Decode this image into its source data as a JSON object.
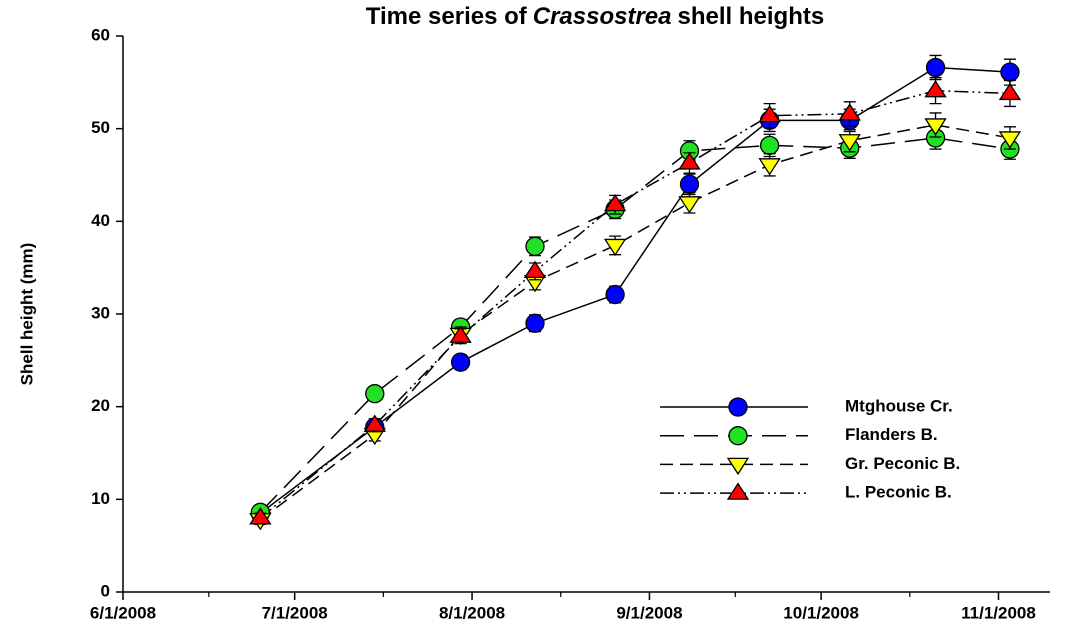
{
  "chart_data": {
    "type": "line",
    "title": [
      "Time series of",
      "Crassostrea",
      "shell heights"
    ],
    "ylabel": "Shell height (mm)",
    "x": [
      "6/25/2008",
      "7/15/2008",
      "7/30/2008",
      "8/12/2008",
      "8/26/2008",
      "9/8/2008",
      "9/22/2008",
      "10/6/2008",
      "10/21/2008",
      "11/3/2008"
    ],
    "xlim": [
      "6/1/2008",
      "11/10/2008"
    ],
    "xticks": [
      "6/1/2008",
      "7/1/2008",
      "8/1/2008",
      "9/1/2008",
      "10/1/2008",
      "11/1/2008"
    ],
    "ylim": [
      0,
      60
    ],
    "yticks": [
      0,
      10,
      20,
      30,
      40,
      50,
      60
    ],
    "series": [
      {
        "name": "Mtghouse Cr.",
        "color": "#0000ff",
        "marker": "circle",
        "dash": "solid",
        "values": [
          8.5,
          17.8,
          24.8,
          29.0,
          32.1,
          44.0,
          50.9,
          50.9,
          56.6,
          56.1
        ],
        "errors": [
          0.6,
          0.8,
          0.8,
          0.9,
          0.9,
          1.1,
          1.2,
          1.2,
          1.3,
          1.4
        ]
      },
      {
        "name": "Flanders B.",
        "color": "#22e022",
        "marker": "circle",
        "dash": "long-dash",
        "values": [
          8.6,
          21.4,
          28.6,
          37.3,
          41.3,
          47.6,
          48.2,
          47.9,
          49.0,
          47.8
        ],
        "errors": [
          0.5,
          0.7,
          0.8,
          1.0,
          1.0,
          1.1,
          1.2,
          1.1,
          1.2,
          1.1
        ]
      },
      {
        "name": "Gr. Peconic B.",
        "color": "#ffff00",
        "marker": "triangle-down",
        "dash": "dash",
        "values": [
          7.8,
          17.0,
          27.8,
          33.5,
          37.4,
          42.0,
          46.1,
          48.7,
          50.4,
          49.0
        ],
        "errors": [
          0.5,
          0.7,
          0.8,
          0.9,
          1.0,
          1.1,
          1.2,
          1.2,
          1.3,
          1.2
        ]
      },
      {
        "name": "L. Peconic B.",
        "color": "#ff0000",
        "marker": "triangle-up",
        "dash": "dash-dot-dot",
        "values": [
          8.0,
          18.0,
          27.6,
          34.6,
          41.8,
          46.3,
          51.4,
          51.6,
          54.1,
          53.8
        ],
        "errors": [
          0.5,
          0.7,
          0.8,
          0.9,
          1.0,
          1.1,
          1.3,
          1.3,
          1.4,
          1.4
        ]
      }
    ],
    "legend": "lower-right",
    "grid": false
  }
}
